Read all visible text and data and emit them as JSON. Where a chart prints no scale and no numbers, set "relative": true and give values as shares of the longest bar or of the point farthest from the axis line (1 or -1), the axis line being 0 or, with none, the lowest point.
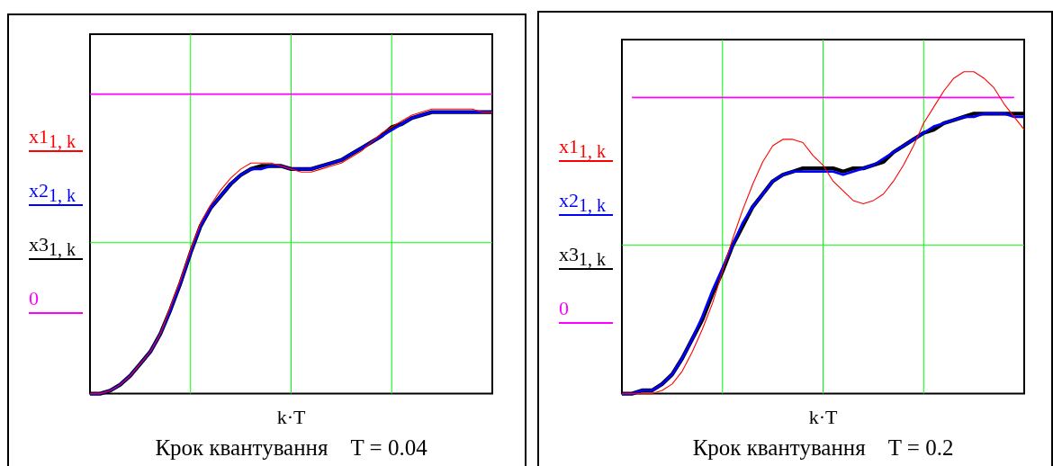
{
  "chart_data": [
    {
      "type": "line",
      "title": "Крок квантування    T = 0.04",
      "xlabel": "k·T",
      "relative": true,
      "grid": true,
      "legend": "left",
      "categories": [
        null,
        null,
        null,
        null,
        null,
        null,
        null,
        null,
        null,
        null,
        null,
        null,
        null,
        null,
        null,
        null,
        null,
        null,
        null,
        null,
        null,
        null,
        null,
        null,
        null,
        null,
        null,
        null,
        null,
        null,
        null,
        null,
        null,
        null,
        null,
        null,
        null,
        null,
        null,
        null,
        null
      ],
      "series": [
        {
          "name": "x1$_{1, k}$",
          "color": "#ff0000",
          "values": [
            0,
            0,
            0.01,
            0.03,
            0.06,
            0.1,
            0.14,
            0.2,
            0.29,
            0.38,
            0.48,
            0.57,
            0.63,
            0.68,
            0.72,
            0.75,
            0.77,
            0.77,
            0.77,
            0.76,
            0.75,
            0.74,
            0.74,
            0.75,
            0.76,
            0.77,
            0.79,
            0.81,
            0.84,
            0.87,
            0.89,
            0.91,
            0.93,
            0.94,
            0.95,
            0.95,
            0.95,
            0.95,
            0.95,
            0.94,
            0.94
          ]
        },
        {
          "name": "x2$_{1, k}$",
          "color": "#0000ff",
          "values": [
            0,
            0,
            0.01,
            0.03,
            0.06,
            0.1,
            0.14,
            0.2,
            0.28,
            0.37,
            0.47,
            0.56,
            0.62,
            0.66,
            0.7,
            0.73,
            0.75,
            0.75,
            0.76,
            0.76,
            0.75,
            0.75,
            0.75,
            0.76,
            0.77,
            0.78,
            0.8,
            0.82,
            0.84,
            0.86,
            0.88,
            0.9,
            0.92,
            0.93,
            0.94,
            0.94,
            0.94,
            0.94,
            0.94,
            0.94,
            0.94
          ]
        },
        {
          "name": "x3$_{1, k}$",
          "color": "#000000",
          "values": [
            0,
            0,
            0.01,
            0.03,
            0.06,
            0.1,
            0.14,
            0.2,
            0.28,
            0.37,
            0.47,
            0.56,
            0.62,
            0.66,
            0.7,
            0.73,
            0.75,
            0.76,
            0.76,
            0.76,
            0.75,
            0.75,
            0.75,
            0.76,
            0.77,
            0.78,
            0.8,
            0.82,
            0.84,
            0.86,
            0.89,
            0.9,
            0.92,
            0.93,
            0.94,
            0.94,
            0.94,
            0.94,
            0.94,
            0.94,
            0.94
          ]
        },
        {
          "name": "0",
          "color": "#ff00ff",
          "values": [
            1,
            1,
            1,
            1,
            1,
            1,
            1,
            1,
            1,
            1,
            1,
            1,
            1,
            1,
            1,
            1,
            1,
            1,
            1,
            1,
            1,
            1,
            1,
            1,
            1,
            1,
            1,
            1,
            1,
            1,
            1,
            1,
            1,
            1,
            1,
            1,
            1,
            1,
            1,
            1,
            1
          ]
        }
      ]
    },
    {
      "type": "line",
      "title": "Крок квантування    T = 0.2",
      "xlabel": "k·T",
      "relative": true,
      "grid": true,
      "legend": "left",
      "categories": [
        null,
        null,
        null,
        null,
        null,
        null,
        null,
        null,
        null,
        null,
        null,
        null,
        null,
        null,
        null,
        null,
        null,
        null,
        null,
        null,
        null,
        null,
        null,
        null,
        null,
        null,
        null,
        null,
        null,
        null,
        null,
        null,
        null,
        null,
        null,
        null,
        null,
        null,
        null,
        null,
        null
      ],
      "series": [
        {
          "name": "x1$_{1, k}$",
          "color": "#ff0000",
          "values": [
            0,
            0,
            0,
            0,
            0.01,
            0.03,
            0.07,
            0.13,
            0.2,
            0.28,
            0.38,
            0.48,
            0.57,
            0.65,
            0.72,
            0.77,
            0.79,
            0.79,
            0.78,
            0.74,
            0.71,
            0.66,
            0.63,
            0.6,
            0.59,
            0.6,
            0.62,
            0.66,
            0.71,
            0.77,
            0.84,
            0.89,
            0.94,
            0.98,
            1,
            1,
            0.98,
            0.95,
            0.9,
            0.86,
            0.82
          ]
        },
        {
          "name": "x2$_{1, k}$",
          "color": "#0000ff",
          "values": [
            0,
            0,
            0.01,
            0.01,
            0.03,
            0.06,
            0.11,
            0.17,
            0.24,
            0.32,
            0.39,
            0.46,
            0.53,
            0.58,
            0.62,
            0.66,
            0.68,
            0.69,
            0.69,
            0.69,
            0.69,
            0.69,
            0.68,
            0.69,
            0.7,
            0.71,
            0.73,
            0.75,
            0.77,
            0.79,
            0.81,
            0.83,
            0.84,
            0.85,
            0.86,
            0.86,
            0.87,
            0.87,
            0.87,
            0.86,
            0.86
          ]
        },
        {
          "name": "x3$_{1, k}$",
          "color": "#000000",
          "values": [
            0,
            0,
            0.01,
            0.01,
            0.03,
            0.06,
            0.11,
            0.17,
            0.23,
            0.31,
            0.38,
            0.46,
            0.52,
            0.58,
            0.62,
            0.66,
            0.68,
            0.69,
            0.7,
            0.7,
            0.7,
            0.7,
            0.69,
            0.7,
            0.7,
            0.71,
            0.72,
            0.75,
            0.77,
            0.79,
            0.81,
            0.82,
            0.84,
            0.85,
            0.86,
            0.87,
            0.87,
            0.87,
            0.87,
            0.87,
            0.87
          ]
        },
        {
          "name": "0",
          "color": "#ff00ff",
          "values": [
            null,
            0.92,
            0.92,
            0.92,
            0.92,
            0.92,
            0.92,
            0.92,
            0.92,
            0.92,
            0.92,
            0.92,
            0.92,
            0.92,
            0.92,
            0.92,
            0.92,
            0.92,
            0.92,
            0.92,
            0.92,
            0.92,
            0.92,
            0.92,
            0.92,
            0.92,
            0.92,
            0.92,
            0.92,
            0.92,
            0.92,
            0.92,
            0.92,
            0.92,
            0.92,
            0.92,
            0.92,
            0.92,
            0.92,
            0.92,
            null
          ]
        }
      ]
    }
  ]
}
